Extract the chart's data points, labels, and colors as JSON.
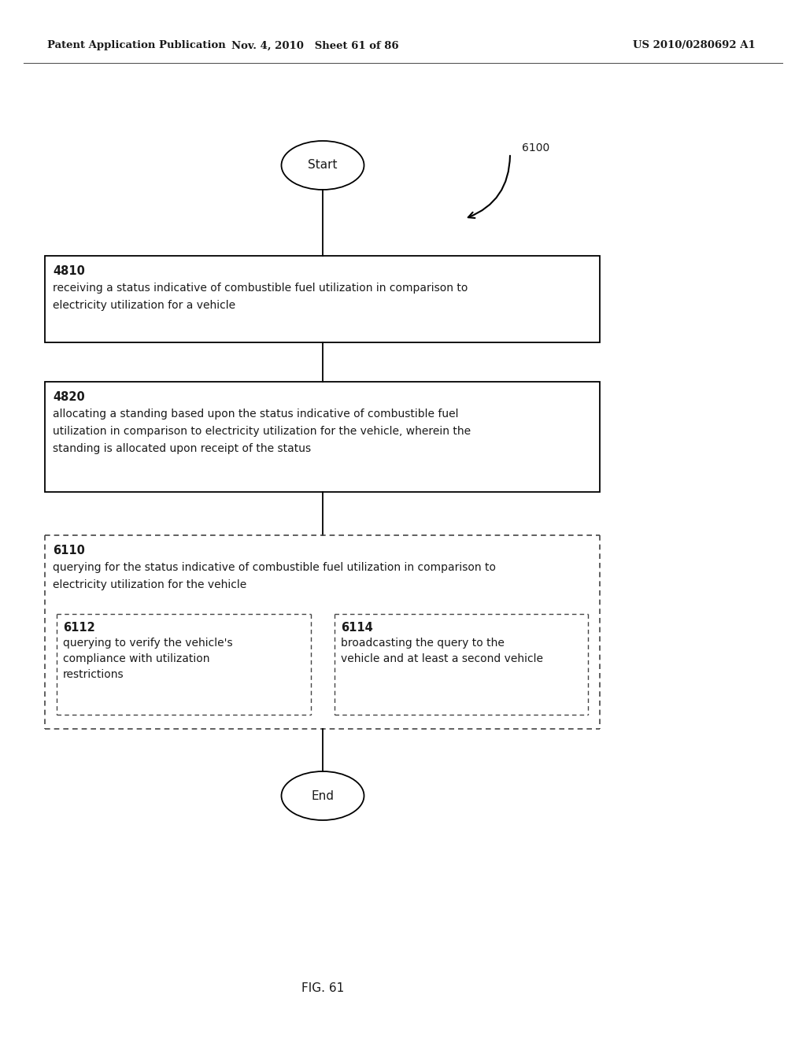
{
  "header_left": "Patent Application Publication",
  "header_mid": "Nov. 4, 2010   Sheet 61 of 86",
  "header_right": "US 2010/0280692 A1",
  "fig_label": "FIG. 61",
  "start_label": "Start",
  "end_label": "End",
  "ref_6100": "6100",
  "box_4810_id": "4810",
  "box_4810_line1": "receiving a status indicative of combustible fuel utilization in comparison to",
  "box_4810_line2": "electricity utilization for a vehicle",
  "box_4820_id": "4820",
  "box_4820_line1": "allocating a standing based upon the status indicative of combustible fuel",
  "box_4820_line2": "utilization in comparison to electricity utilization for the vehicle, wherein the",
  "box_4820_line3": "standing is allocated upon receipt of the status",
  "box_6110_id": "6110",
  "box_6110_line1": "querying for the status indicative of combustible fuel utilization in comparison to",
  "box_6110_line2": "electricity utilization for the vehicle",
  "box_6112_id": "6112",
  "box_6112_line1": "querying to verify the vehicle's",
  "box_6112_line2": "compliance with utilization",
  "box_6112_line3": "restrictions",
  "box_6114_id": "6114",
  "box_6114_line1": "broadcasting the query to the",
  "box_6114_line2": "vehicle and at least a second vehicle",
  "bg_color": "#ffffff",
  "text_color": "#1a1a1a",
  "line_color": "#000000",
  "dash_color": "#444444"
}
